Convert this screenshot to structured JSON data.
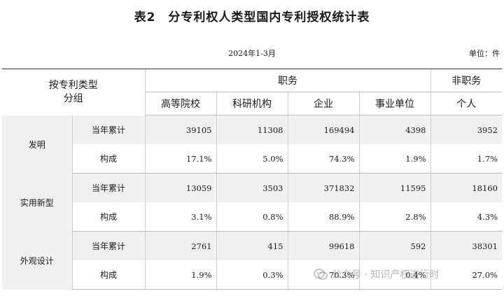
{
  "title": "表2　分专利权人类型国内专利授权统计表",
  "period": "2024年1-3月",
  "unit": "单位：件",
  "header": {
    "group_label": "按专利类型\n分组",
    "service_label": "职务",
    "nonservice_label": "非职务",
    "columns": [
      "高等院校",
      "科研机构",
      "企业",
      "事业单位",
      "个人"
    ]
  },
  "rows": [
    {
      "category": "发明",
      "metrics": [
        {
          "label": "当年累计",
          "values": [
            "39105",
            "11308",
            "169494",
            "4398",
            "3952"
          ]
        },
        {
          "label": "构成",
          "values": [
            "17.1%",
            "5.0%",
            "74.3%",
            "1.9%",
            "1.7%"
          ]
        }
      ]
    },
    {
      "category": "实用新型",
      "metrics": [
        {
          "label": "当年累计",
          "values": [
            "13059",
            "3503",
            "371832",
            "11595",
            "18160"
          ]
        },
        {
          "label": "构成",
          "values": [
            "3.1%",
            "0.8%",
            "88.9%",
            "2.8%",
            "4.3%"
          ]
        }
      ]
    },
    {
      "category": "外观设计",
      "metrics": [
        {
          "label": "当年累计",
          "values": [
            "2761",
            "415",
            "99618",
            "592",
            "38301"
          ]
        },
        {
          "label": "构成",
          "values": [
            "1.9%",
            "0.3%",
            "70.3%",
            "0.4%",
            "27.0%"
          ]
        }
      ]
    }
  ],
  "watermark": "公众号 · 知识产权进行时"
}
